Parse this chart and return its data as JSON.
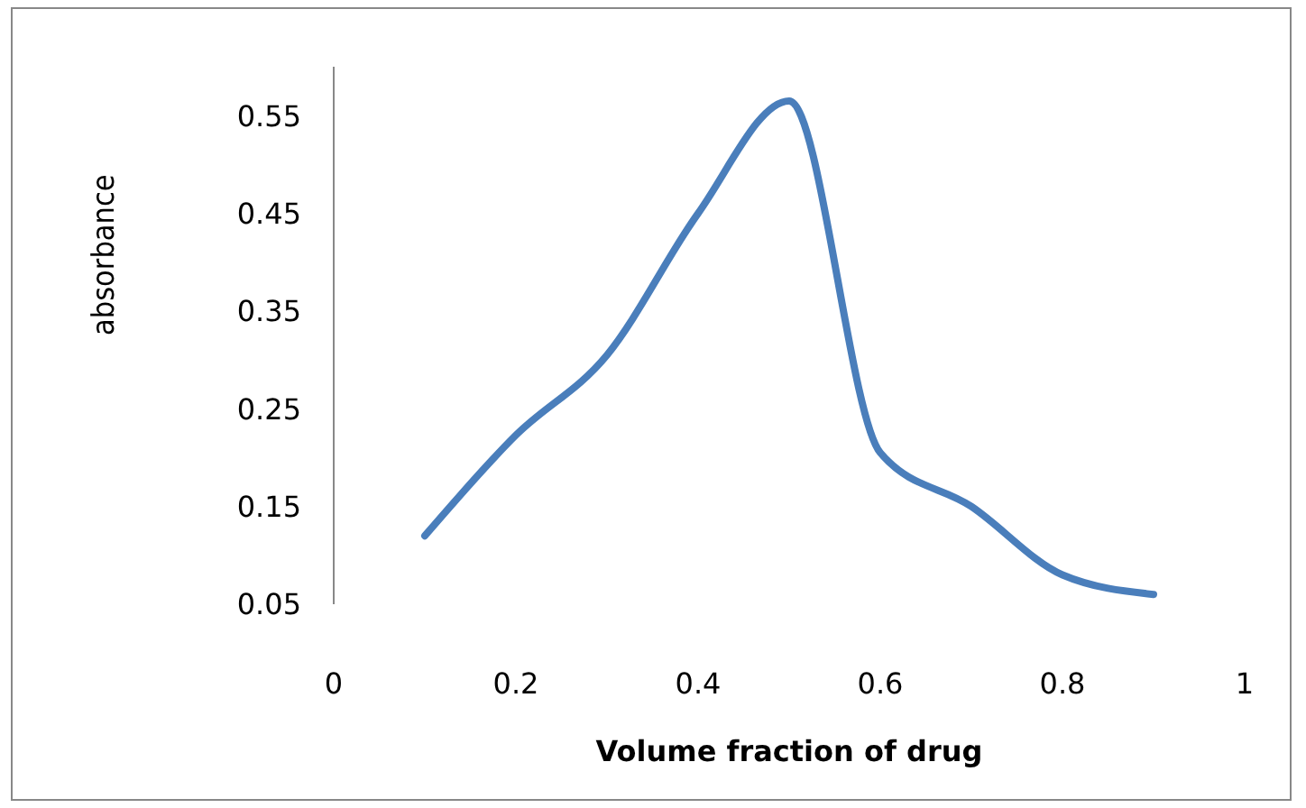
{
  "chart_data": {
    "type": "line",
    "xlabel": "Volume fraction of  drug",
    "ylabel": "absorbance",
    "x": [
      0.1,
      0.2,
      0.3,
      0.4,
      0.5,
      0.6,
      0.7,
      0.8,
      0.9
    ],
    "series": [
      {
        "color": "#4a7ebb",
        "values": [
          0.12,
          0.223,
          0.305,
          0.45,
          0.565,
          0.205,
          0.15,
          0.08,
          0.06
        ]
      }
    ],
    "xlim": [
      0,
      1
    ],
    "xticks": [
      0,
      0.2,
      0.4,
      0.6,
      0.8,
      1
    ],
    "ylim": [
      0.05,
      0.6
    ],
    "yticks": [
      0.05,
      0.15,
      0.25,
      0.35,
      0.45,
      0.55
    ],
    "grid": false,
    "legend": false,
    "marker": "none",
    "line_style": "solid"
  }
}
